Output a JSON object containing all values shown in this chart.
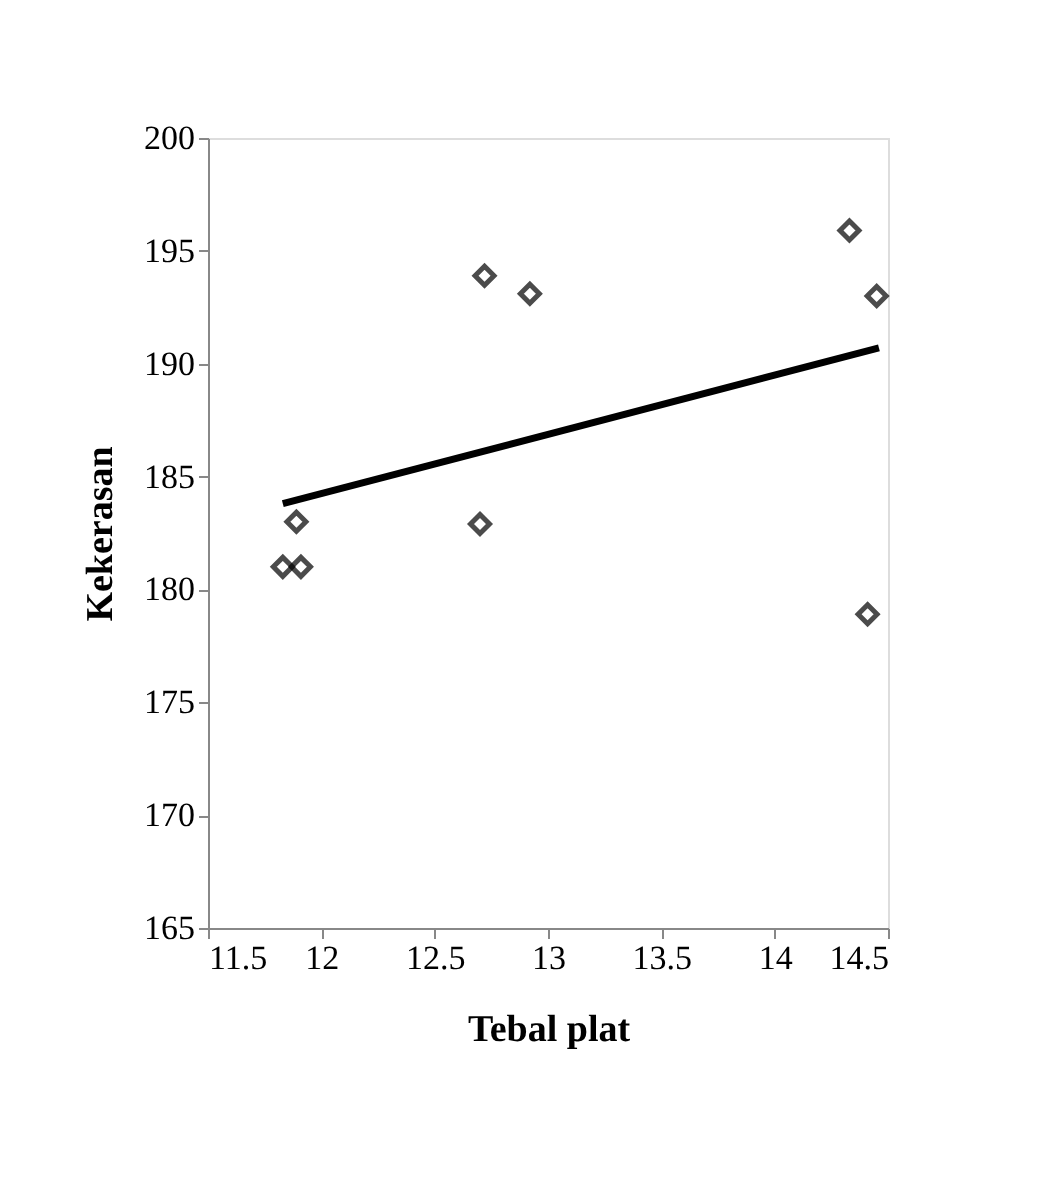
{
  "chart_data": {
    "type": "scatter",
    "xlabel": "Tebal plat",
    "ylabel": "Kekerasan",
    "grid": false,
    "xlim": [
      11.5,
      14.5
    ],
    "xticks": [
      11.5,
      12,
      12.5,
      13,
      13.5,
      14,
      14.5
    ],
    "ylim": [
      165,
      200
    ],
    "yticks": [
      165,
      170,
      175,
      180,
      185,
      190,
      195,
      200
    ],
    "series": [
      {
        "color": "#000000",
        "marker": "diamond",
        "x": [
          11.83,
          11.91,
          11.89,
          12.7,
          12.72,
          12.92,
          14.33,
          14.45,
          14.41
        ],
        "values": [
          181,
          181,
          183,
          182.9,
          193.9,
          193.1,
          195.9,
          193,
          178.9
        ]
      },
      {
        "type": "line",
        "color": "#000000",
        "x": [
          11.83,
          14.46
        ],
        "values": [
          183.8,
          190.7
        ]
      }
    ]
  }
}
